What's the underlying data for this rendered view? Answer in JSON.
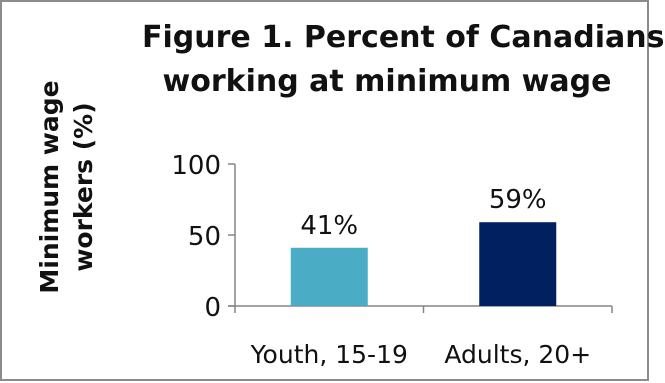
{
  "chart_data": {
    "type": "bar",
    "title_lines": [
      "Figure 1. Percent of Canadians",
      "working  at minimum wage"
    ],
    "ylabel_lines": [
      "Minimum wage",
      "workers (%)"
    ],
    "xlabel": "",
    "categories": [
      "Youth, 15-19",
      "Adults, 20+"
    ],
    "values": [
      41,
      59
    ],
    "data_labels": [
      "41%",
      "59%"
    ],
    "bar_colors": [
      "#4bacc6",
      "#002060"
    ],
    "ylim": [
      0,
      100
    ],
    "yticks": [
      0,
      50,
      100
    ],
    "ytick_labels": [
      "0",
      "50",
      "100"
    ],
    "grid": false,
    "legend": "none"
  }
}
